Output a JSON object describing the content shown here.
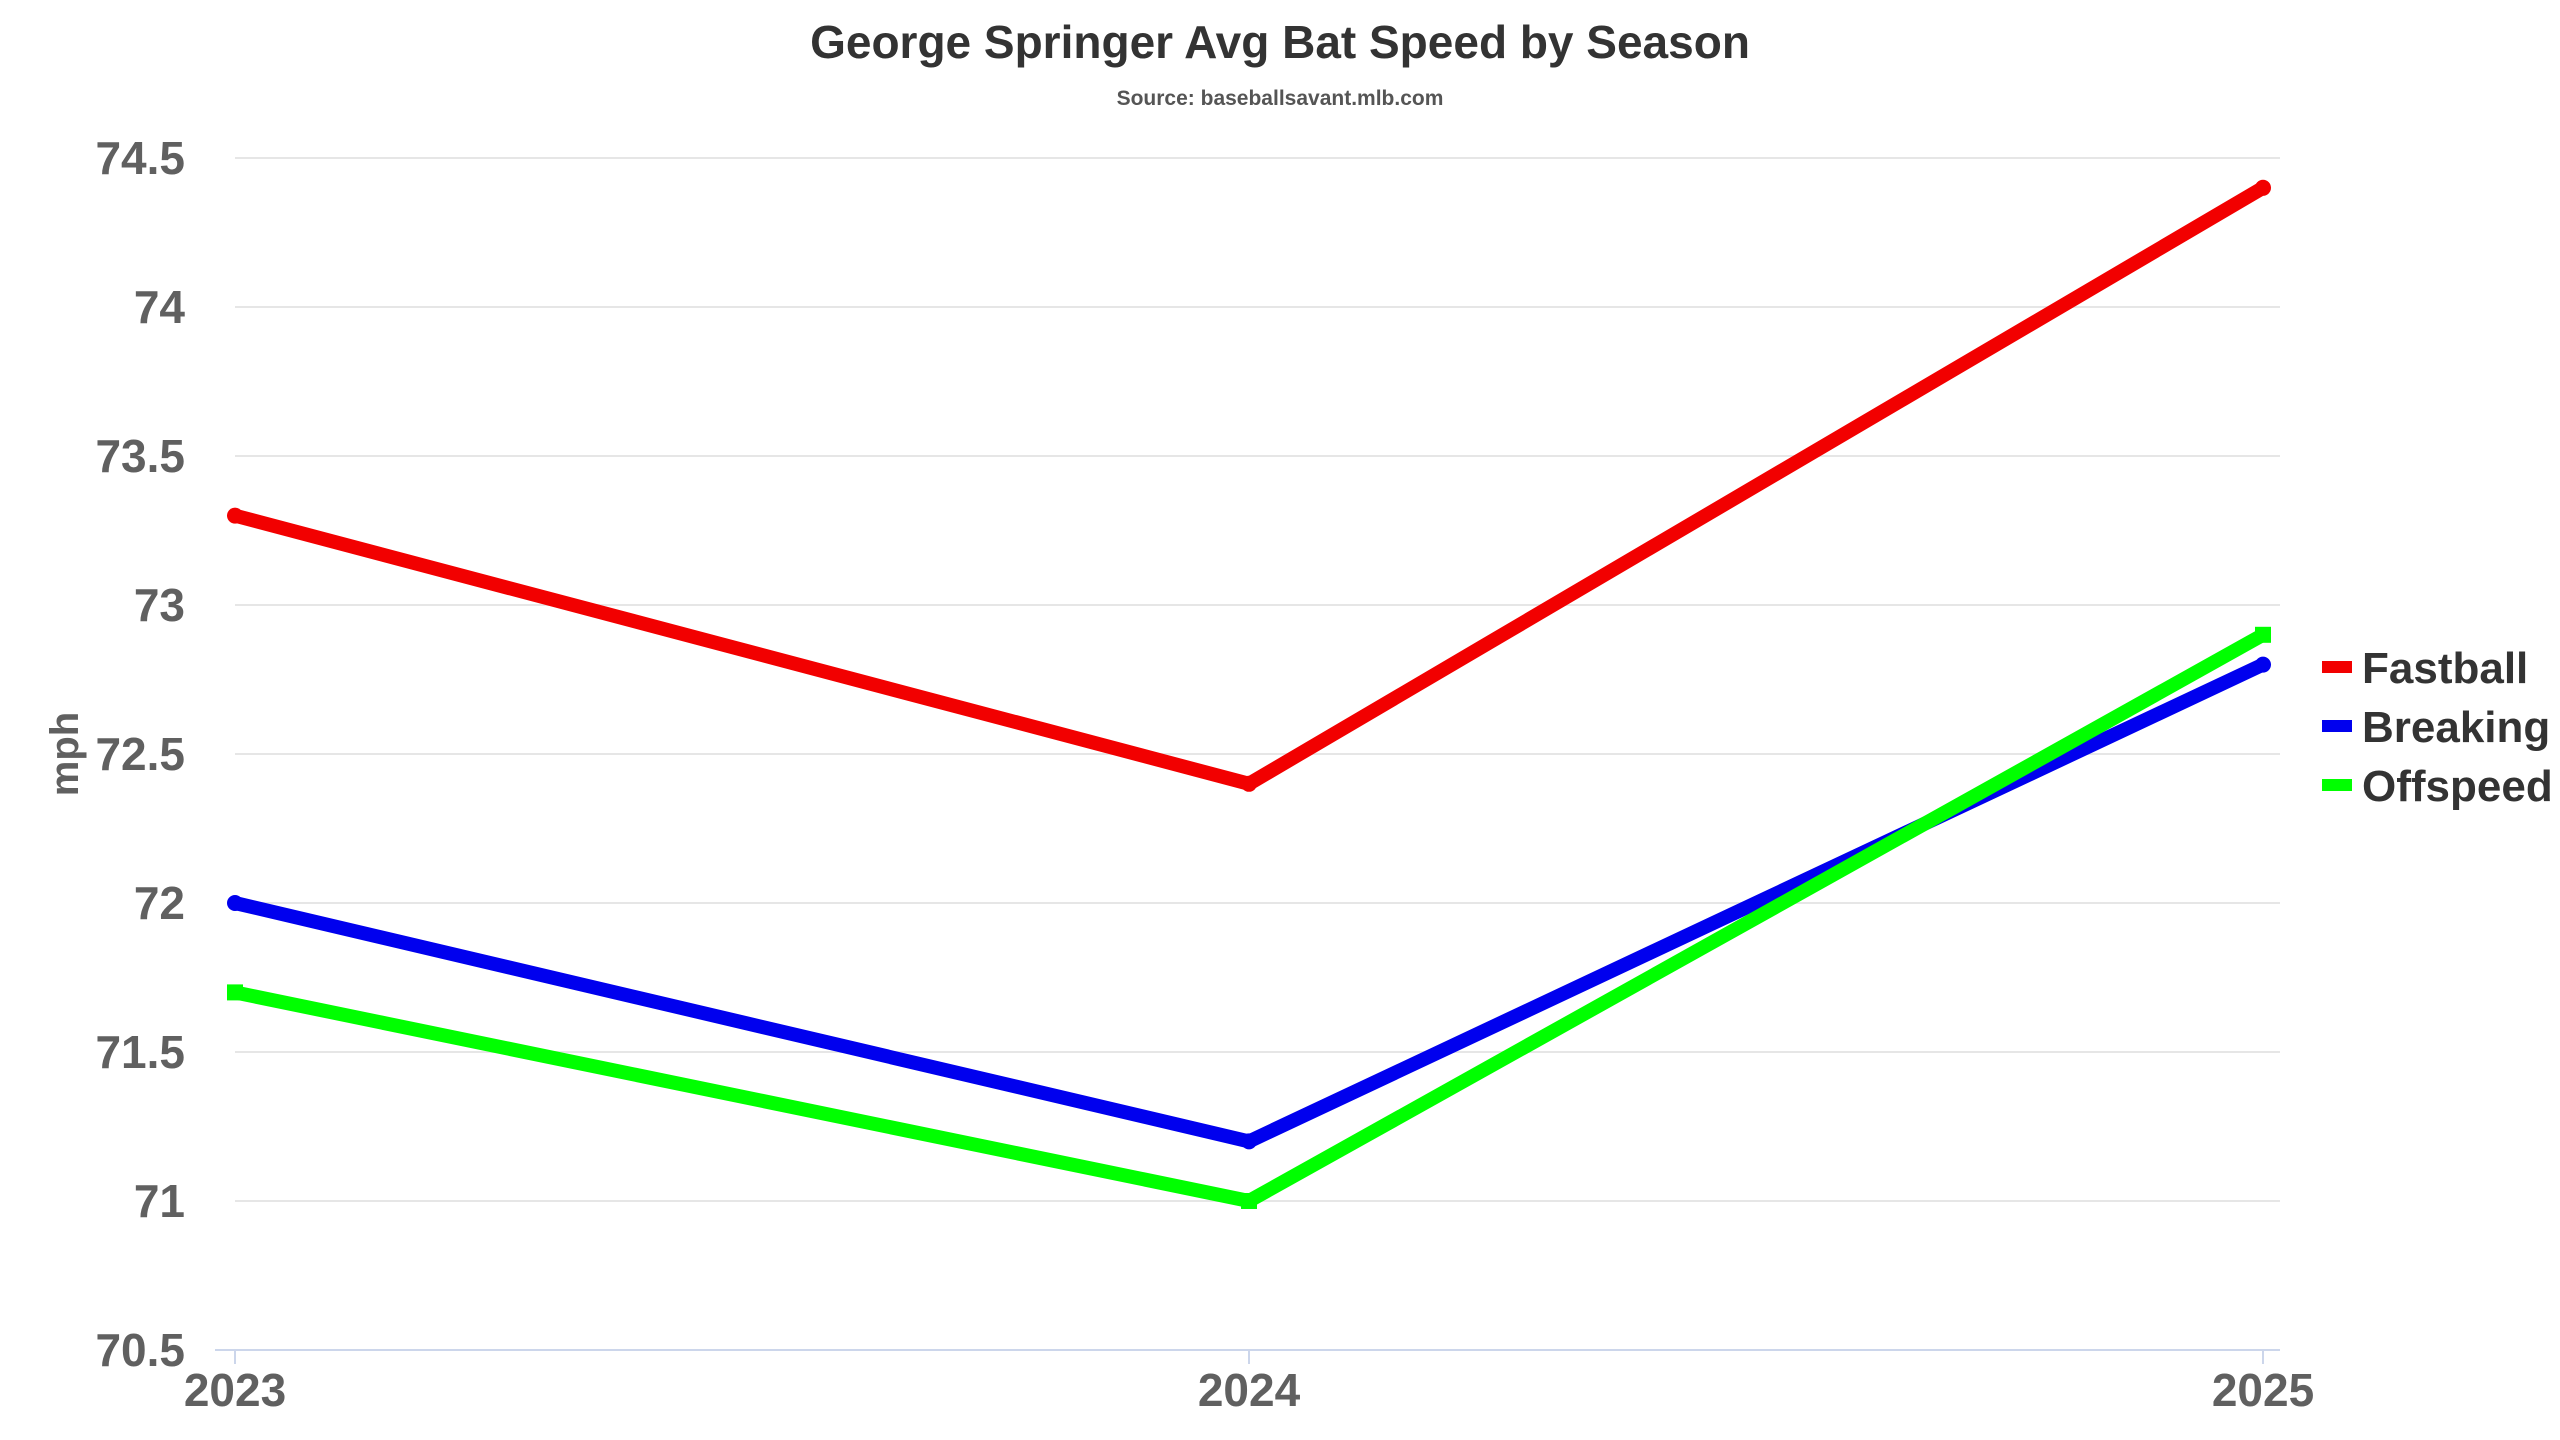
{
  "chart_data": {
    "type": "line",
    "title": "George Springer Avg Bat Speed by Season",
    "subtitle": "Source: baseballsavant.mlb.com",
    "xlabel": "",
    "ylabel": "mph",
    "categories": [
      "2023",
      "2024",
      "2025"
    ],
    "ylim": [
      70.5,
      74.5
    ],
    "yticks": [
      70.5,
      71,
      71.5,
      72,
      72.5,
      73,
      73.5,
      74,
      74.5
    ],
    "grid": true,
    "legend_position": "right",
    "series": [
      {
        "name": "Fastball",
        "color": "#f20000",
        "marker": "circle",
        "values": [
          73.3,
          72.4,
          74.4
        ]
      },
      {
        "name": "Breaking",
        "color": "#0000ee",
        "marker": "circle",
        "values": [
          72.0,
          71.2,
          72.8
        ]
      },
      {
        "name": "Offspeed",
        "color": "#00ff00",
        "marker": "square",
        "values": [
          71.7,
          71.0,
          72.9
        ]
      }
    ]
  }
}
